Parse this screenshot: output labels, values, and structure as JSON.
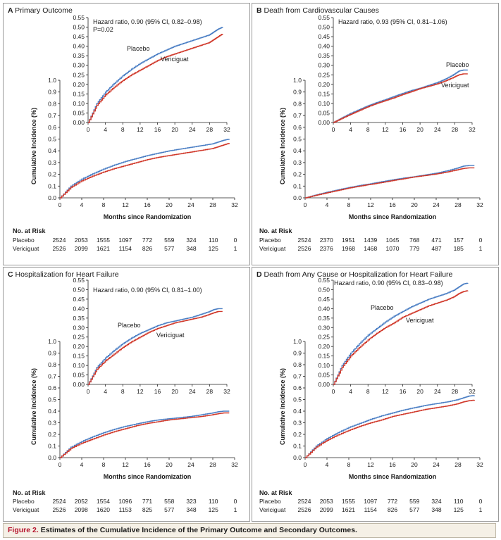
{
  "figure": {
    "label": "Figure 2.",
    "caption": "Estimates of the Cumulative Incidence of the Primary Outcome and Secondary Outcomes."
  },
  "colors": {
    "placebo": "#4a7ec4",
    "vericiguat": "#d0382a",
    "axis": "#222222",
    "frame": "#9a9a9a"
  },
  "risk_header": "No. at Risk",
  "chart_data": [
    {
      "type": "line",
      "panel": "A",
      "title": "Primary Outcome",
      "xlabel": "Months since Randomization",
      "ylabel": "Cumulative Incidence (%)",
      "xticks": [
        0,
        4,
        8,
        12,
        16,
        20,
        24,
        28,
        32
      ],
      "yticks_main": [
        "0.0",
        "0.1",
        "0.2",
        "0.3",
        "0.4",
        "0.5",
        "0.6",
        "0.7",
        "0.8",
        "0.9",
        "1.0"
      ],
      "yticks_inset": [
        "0.00",
        "0.05",
        "0.10",
        "0.15",
        "0.20",
        "0.25",
        "0.30",
        "0.35",
        "0.40",
        "0.45",
        "0.50",
        "0.55"
      ],
      "xlim": [
        0,
        32
      ],
      "ylim": [
        0,
        1.0
      ],
      "inset_ylim": [
        0,
        0.55
      ],
      "annotation": [
        "Hazard ratio, 0.90 (95% CI, 0.82–0.98)",
        "P=0.02"
      ],
      "series": [
        {
          "name": "Placebo",
          "x": [
            0,
            2,
            4,
            6,
            8,
            10,
            12,
            14,
            16,
            18,
            20,
            22,
            24,
            26,
            28,
            29,
            30,
            31
          ],
          "values": [
            0,
            0.1,
            0.16,
            0.205,
            0.245,
            0.28,
            0.31,
            0.335,
            0.36,
            0.38,
            0.4,
            0.415,
            0.43,
            0.445,
            0.46,
            0.475,
            0.49,
            0.5
          ]
        },
        {
          "name": "Vericiguat",
          "x": [
            0,
            2,
            4,
            6,
            8,
            10,
            12,
            14,
            16,
            18,
            20,
            22,
            24,
            26,
            28,
            29,
            30,
            31
          ],
          "values": [
            0,
            0.09,
            0.145,
            0.185,
            0.22,
            0.25,
            0.275,
            0.3,
            0.325,
            0.345,
            0.36,
            0.375,
            0.39,
            0.405,
            0.42,
            0.435,
            0.45,
            0.465
          ]
        }
      ],
      "labels": {
        "placebo": "Placebo",
        "vericiguat": "Vericiguat"
      },
      "risk": [
        {
          "group": "Placebo",
          "counts": [
            "2524",
            "2053",
            "1555",
            "1097",
            "772",
            "559",
            "324",
            "110",
            "0"
          ]
        },
        {
          "group": "Vericiguat",
          "counts": [
            "2526",
            "2099",
            "1621",
            "1154",
            "826",
            "577",
            "348",
            "125",
            "1"
          ]
        }
      ]
    },
    {
      "type": "line",
      "panel": "B",
      "title": "Death from Cardiovascular Causes",
      "xlabel": "Months since Randomization",
      "ylabel": "Cumulative Incidence (%)",
      "xticks": [
        0,
        4,
        8,
        12,
        16,
        20,
        24,
        28,
        32
      ],
      "yticks_main": [
        "0.0",
        "0.1",
        "0.2",
        "0.3",
        "0.4",
        "0.5",
        "0.6",
        "0.7",
        "0.8",
        "0.9",
        "1.0"
      ],
      "yticks_inset": [
        "0.00",
        "0.05",
        "0.10",
        "0.15",
        "0.20",
        "0.25",
        "0.30",
        "0.35",
        "0.40",
        "0.45",
        "0.50",
        "0.55"
      ],
      "xlim": [
        0,
        32
      ],
      "ylim": [
        0,
        1.0
      ],
      "inset_ylim": [
        0,
        0.55
      ],
      "annotation": [
        "Hazard ratio, 0.93 (95% CI, 0.81–1.06)"
      ],
      "series": [
        {
          "name": "Placebo",
          "x": [
            0,
            2,
            4,
            6,
            8,
            10,
            12,
            14,
            16,
            18,
            20,
            22,
            24,
            26,
            28,
            29,
            30,
            31
          ],
          "values": [
            0,
            0.025,
            0.048,
            0.068,
            0.088,
            0.105,
            0.12,
            0.137,
            0.153,
            0.168,
            0.18,
            0.195,
            0.21,
            0.23,
            0.255,
            0.27,
            0.275,
            0.275
          ]
        },
        {
          "name": "Vericiguat",
          "x": [
            0,
            2,
            4,
            6,
            8,
            10,
            12,
            14,
            16,
            18,
            20,
            22,
            24,
            26,
            28,
            29,
            30,
            31
          ],
          "values": [
            0,
            0.022,
            0.043,
            0.063,
            0.083,
            0.1,
            0.115,
            0.13,
            0.147,
            0.162,
            0.178,
            0.19,
            0.203,
            0.22,
            0.24,
            0.25,
            0.255,
            0.255
          ]
        }
      ],
      "labels": {
        "placebo": "Placebo",
        "vericiguat": "Vericiguat"
      },
      "risk": [
        {
          "group": "Placebo",
          "counts": [
            "2524",
            "2370",
            "1951",
            "1439",
            "1045",
            "768",
            "471",
            "157",
            "0"
          ]
        },
        {
          "group": "Vericiguat",
          "counts": [
            "2526",
            "2376",
            "1968",
            "1468",
            "1070",
            "779",
            "487",
            "185",
            "1"
          ]
        }
      ]
    },
    {
      "type": "line",
      "panel": "C",
      "title": "Hospitalization for Heart Failure",
      "xlabel": "Months since Randomization",
      "ylabel": "Cumulative Incidence (%)",
      "xticks": [
        0,
        4,
        8,
        12,
        16,
        20,
        24,
        28,
        32
      ],
      "yticks_main": [
        "0.0",
        "0.1",
        "0.2",
        "0.3",
        "0.4",
        "0.5",
        "0.6",
        "0.7",
        "0.8",
        "0.9",
        "1.0"
      ],
      "yticks_inset": [
        "0.00",
        "0.05",
        "0.10",
        "0.15",
        "0.20",
        "0.25",
        "0.30",
        "0.35",
        "0.40",
        "0.45",
        "0.50",
        "0.55"
      ],
      "xlim": [
        0,
        32
      ],
      "ylim": [
        0,
        1.0
      ],
      "inset_ylim": [
        0,
        0.55
      ],
      "annotation": [
        "Hazard ratio, 0.90 (95% CI, 0.81–1.00)"
      ],
      "series": [
        {
          "name": "Placebo",
          "x": [
            0,
            2,
            4,
            6,
            8,
            10,
            12,
            14,
            16,
            18,
            20,
            22,
            24,
            26,
            28,
            29,
            30,
            31
          ],
          "values": [
            0,
            0.09,
            0.14,
            0.18,
            0.215,
            0.245,
            0.27,
            0.29,
            0.31,
            0.325,
            0.335,
            0.345,
            0.355,
            0.37,
            0.385,
            0.395,
            0.4,
            0.4
          ]
        },
        {
          "name": "Vericiguat",
          "x": [
            0,
            2,
            4,
            6,
            8,
            10,
            12,
            14,
            16,
            18,
            20,
            22,
            24,
            26,
            28,
            29,
            30,
            31
          ],
          "values": [
            0,
            0.08,
            0.125,
            0.16,
            0.195,
            0.225,
            0.25,
            0.275,
            0.295,
            0.31,
            0.325,
            0.335,
            0.345,
            0.355,
            0.37,
            0.378,
            0.385,
            0.385
          ]
        }
      ],
      "labels": {
        "placebo": "Placebo",
        "vericiguat": "Vericiguat"
      },
      "risk": [
        {
          "group": "Placebo",
          "counts": [
            "2524",
            "2052",
            "1554",
            "1096",
            "771",
            "558",
            "323",
            "110",
            "0"
          ]
        },
        {
          "group": "Vericiguat",
          "counts": [
            "2526",
            "2098",
            "1620",
            "1153",
            "825",
            "577",
            "348",
            "125",
            "1"
          ]
        }
      ]
    },
    {
      "type": "line",
      "panel": "D",
      "title": "Death from Any Cause or Hospitalization for Heart Failure",
      "xlabel": "Months since Randomization",
      "ylabel": "Cumulative Incidence (%)",
      "xticks": [
        0,
        4,
        8,
        12,
        16,
        20,
        24,
        28,
        32
      ],
      "yticks_main": [
        "0.0",
        "0.1",
        "0.2",
        "0.3",
        "0.4",
        "0.5",
        "0.6",
        "0.7",
        "0.8",
        "0.9",
        "1.0"
      ],
      "yticks_inset": [
        "0.00",
        "0.05",
        "0.10",
        "0.15",
        "0.20",
        "0.25",
        "0.30",
        "0.35",
        "0.40",
        "0.45",
        "0.50",
        "0.55"
      ],
      "xlim": [
        0,
        32
      ],
      "ylim": [
        0,
        1.0
      ],
      "inset_ylim": [
        0,
        0.55
      ],
      "annotation": [
        "Hazard ratio, 0.90 (95% CI, 0.83–0.98)"
      ],
      "series": [
        {
          "name": "Placebo",
          "x": [
            0,
            2,
            4,
            6,
            8,
            10,
            12,
            14,
            16,
            18,
            20,
            22,
            24,
            26,
            28,
            29,
            30,
            31
          ],
          "values": [
            0,
            0.1,
            0.165,
            0.215,
            0.26,
            0.295,
            0.33,
            0.36,
            0.385,
            0.41,
            0.43,
            0.45,
            0.465,
            0.48,
            0.5,
            0.515,
            0.53,
            0.535
          ]
        },
        {
          "name": "Vericiguat",
          "x": [
            0,
            2,
            4,
            6,
            8,
            10,
            12,
            14,
            16,
            18,
            20,
            22,
            24,
            26,
            28,
            29,
            30,
            31
          ],
          "values": [
            0,
            0.09,
            0.15,
            0.195,
            0.235,
            0.27,
            0.3,
            0.325,
            0.355,
            0.375,
            0.395,
            0.415,
            0.43,
            0.445,
            0.465,
            0.48,
            0.49,
            0.495
          ]
        }
      ],
      "labels": {
        "placebo": "Placebo",
        "vericiguat": "Vericiguat"
      },
      "risk": [
        {
          "group": "Placebo",
          "counts": [
            "2524",
            "2053",
            "1555",
            "1097",
            "772",
            "559",
            "324",
            "110",
            "0"
          ]
        },
        {
          "group": "Vericiguat",
          "counts": [
            "2526",
            "2099",
            "1621",
            "1154",
            "826",
            "577",
            "348",
            "125",
            "1"
          ]
        }
      ]
    }
  ]
}
